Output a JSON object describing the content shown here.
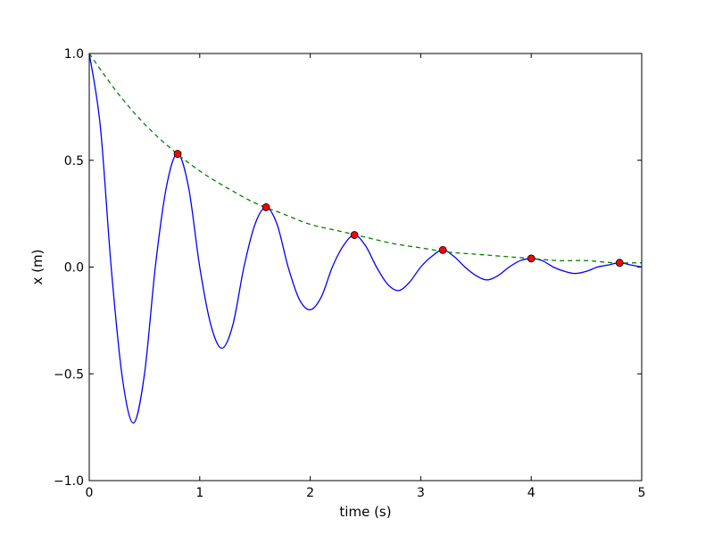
{
  "chart_data": {
    "type": "line",
    "title": "",
    "xlabel": "time (s)",
    "ylabel": "x (m)",
    "xlim": [
      0,
      5
    ],
    "ylim": [
      -1.0,
      1.0
    ],
    "grid": false,
    "x_ticks": [
      0,
      1,
      2,
      3,
      4,
      5
    ],
    "x_tick_labels": [
      "0",
      "1",
      "2",
      "3",
      "4",
      "5"
    ],
    "y_ticks": [
      -1.0,
      -0.5,
      0.0,
      0.5,
      1.0
    ],
    "y_tick_labels": [
      "−1.0",
      "−0.5",
      "0.0",
      "0.5",
      "1.0"
    ],
    "series": [
      {
        "kind": "damped-oscillation",
        "style": "solid",
        "color": "#0000ff",
        "x": [
          0,
          0.1,
          0.2,
          0.3,
          0.4,
          0.5,
          0.6,
          0.7,
          0.8,
          0.9,
          1.0,
          1.1,
          1.2,
          1.3,
          1.4,
          1.5,
          1.6,
          1.7,
          1.8,
          1.9,
          2.0,
          2.1,
          2.2,
          2.3,
          2.4,
          2.5,
          2.6,
          2.7,
          2.8,
          2.9,
          3.0,
          3.1,
          3.2,
          3.3,
          3.4,
          3.5,
          3.6,
          3.7,
          3.8,
          3.9,
          4.0,
          4.1,
          4.2,
          4.3,
          4.4,
          4.5,
          4.6,
          4.7,
          4.8,
          4.9,
          5.0
        ],
        "y": [
          1.0,
          0.66,
          -0.01,
          -0.52,
          -0.73,
          -0.5,
          0.01,
          0.38,
          0.53,
          0.37,
          0.0,
          -0.27,
          -0.38,
          -0.27,
          0.0,
          0.2,
          0.28,
          0.2,
          0.0,
          -0.15,
          -0.2,
          -0.14,
          0.0,
          0.1,
          0.15,
          0.1,
          0.0,
          -0.08,
          -0.11,
          -0.07,
          0.0,
          0.05,
          0.08,
          0.05,
          0.0,
          -0.04,
          -0.06,
          -0.04,
          0.0,
          0.03,
          0.04,
          0.03,
          0.0,
          -0.02,
          -0.03,
          -0.02,
          0.0,
          0.01,
          0.02,
          0.01,
          0.0
        ]
      },
      {
        "kind": "envelope",
        "style": "dashed",
        "color": "#008000",
        "x": [
          0,
          0.25,
          0.5,
          0.75,
          1.0,
          1.25,
          1.5,
          1.75,
          2.0,
          2.25,
          2.5,
          2.75,
          3.0,
          3.25,
          3.5,
          3.75,
          4.0,
          4.25,
          4.5,
          4.75,
          5.0
        ],
        "y": [
          1.0,
          0.82,
          0.67,
          0.55,
          0.45,
          0.37,
          0.3,
          0.25,
          0.2,
          0.17,
          0.14,
          0.11,
          0.09,
          0.07,
          0.06,
          0.05,
          0.04,
          0.03,
          0.03,
          0.02,
          0.02
        ]
      }
    ],
    "peaks": {
      "marker": "circle",
      "color": "#ff0000",
      "x": [
        0.8,
        1.6,
        2.4,
        3.2,
        4.0,
        4.8
      ],
      "y": [
        0.53,
        0.28,
        0.15,
        0.08,
        0.04,
        0.02
      ]
    }
  }
}
